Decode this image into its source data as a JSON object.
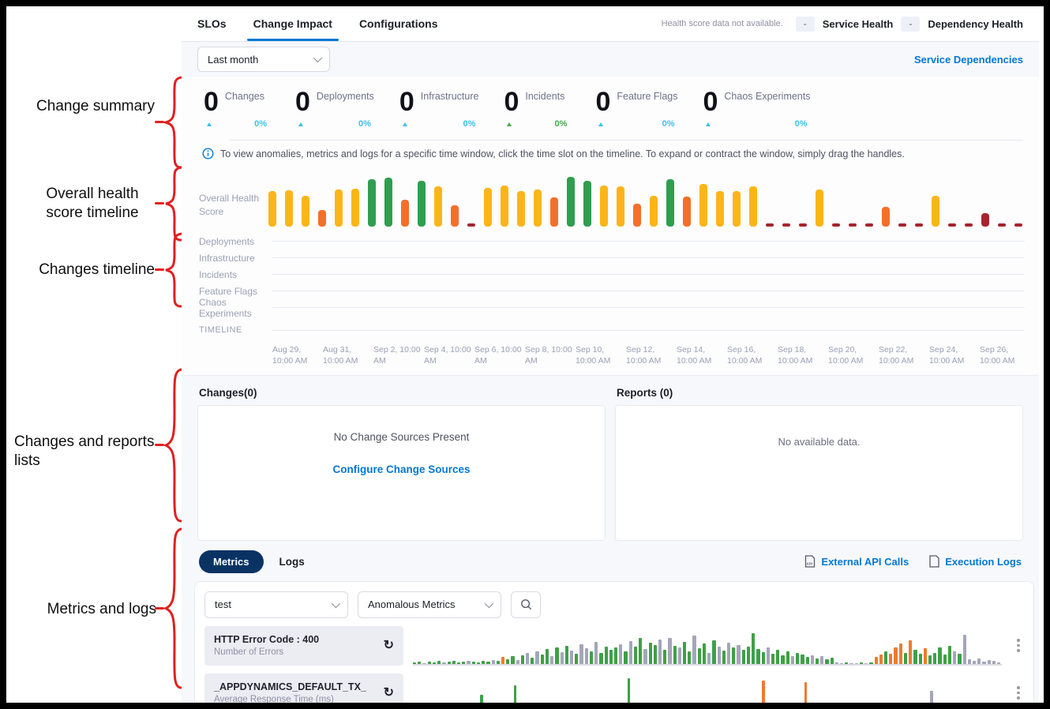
{
  "palette": {
    "y": "#fcb519",
    "g": "#2f9e4f",
    "o": "#f3702b",
    "r": "#a6242c",
    "a": "#a5a5b9"
  },
  "annotations": {
    "labels": [
      "Change summary",
      "Overall health score timeline",
      "Changes timeline",
      "Changes and reports lists",
      "Metrics and logs"
    ],
    "bracket_color": "#e02020"
  },
  "header": {
    "tabs": [
      {
        "label": "SLOs"
      },
      {
        "label": "Change Impact"
      },
      {
        "label": "Configurations"
      }
    ],
    "health_note": "Health score data not available.",
    "service_health": {
      "value": "-",
      "label": "Service Health"
    },
    "dependency_health": {
      "value": "-",
      "label": "Dependency Health"
    }
  },
  "toolbar": {
    "time_range": "Last month",
    "service_dependencies": "Service Dependencies"
  },
  "change_summary": {
    "items": [
      {
        "count": "0",
        "label": "Changes",
        "delta": "0%",
        "trend_color": "#3dc0e8"
      },
      {
        "count": "0",
        "label": "Deployments",
        "delta": "0%",
        "trend_color": "#3dc0e8"
      },
      {
        "count": "0",
        "label": "Infrastructure",
        "delta": "0%",
        "trend_color": "#3dc0e8"
      },
      {
        "count": "0",
        "label": "Incidents",
        "delta": "0%",
        "trend_color": "#42ab47"
      },
      {
        "count": "0",
        "label": "Feature Flags",
        "delta": "0%",
        "trend_color": "#3dc0e8"
      },
      {
        "count": "0",
        "label": "Chaos Experiments",
        "delta": "0%",
        "trend_color": "#3dc0e8"
      }
    ]
  },
  "info_banner": "To view anomalies, metrics and logs for a specific time window, click the time slot on the timeline. To expand or contract the window, simply drag the handles.",
  "health_timeline": {
    "row_label": "Overall Health Score",
    "chart": {
      "type": "bar",
      "heights": [
        68,
        70,
        60,
        32,
        72,
        73,
        92,
        94,
        52,
        88,
        78,
        42,
        7,
        74,
        80,
        68,
        72,
        56,
        96,
        88,
        80,
        78,
        44,
        60,
        92,
        58,
        82,
        68,
        68,
        78,
        7,
        7,
        7,
        72,
        7,
        7,
        7,
        38,
        7,
        7,
        60,
        7,
        7,
        26,
        7,
        7
      ],
      "colors": "yyyoyyggogyoryyyyoggyyoygoyyyyrrryrrrorryrrrrr"
    },
    "change_rows": [
      "Deployments",
      "Infrastructure",
      "Incidents",
      "Feature Flags",
      "Chaos Experiments"
    ],
    "timeline_label": "TIMELINE",
    "dates": [
      "Aug 29, 10:00 AM",
      "Aug 31, 10:00 AM",
      "Sep 2, 10:00 AM",
      "Sep 4, 10:00 AM",
      "Sep 6, 10:00 AM",
      "Sep 8, 10:00 AM",
      "Sep 10, 10:00 AM",
      "Sep 12, 10:00 AM",
      "Sep 14, 10:00 AM",
      "Sep 16, 10:00 AM",
      "Sep 18, 10:00 AM",
      "Sep 20, 10:00 AM",
      "Sep 22, 10:00 AM",
      "Sep 24, 10:00 AM",
      "Sep 26, 10:00 AM"
    ]
  },
  "changes_panel": {
    "title": "Changes(0)",
    "empty_text": "No Change Sources Present",
    "link": "Configure Change Sources"
  },
  "reports_panel": {
    "title": "Reports (0)",
    "empty_text": "No available data."
  },
  "metrics_section": {
    "tabs": [
      {
        "label": "Metrics"
      },
      {
        "label": "Logs"
      }
    ],
    "links": [
      {
        "label": "External API Calls"
      },
      {
        "label": "Execution Logs"
      }
    ],
    "filters": {
      "service": "test",
      "metric_type": "Anomalous Metrics"
    },
    "rows": [
      {
        "title": "HTTP Error Code : 400",
        "subtitle": "Number of Errors",
        "sparkline": {
          "type": "bar",
          "palette": {
            "g": "#3fa047",
            "a": "#a5a5b9",
            "o": "#ef7a2e"
          },
          "heights": [
            3,
            5,
            2,
            6,
            4,
            8,
            3,
            5,
            7,
            4,
            6,
            9,
            5,
            3,
            8,
            6,
            10,
            7,
            18,
            12,
            20,
            10,
            24,
            30,
            16,
            34,
            26,
            40,
            22,
            44,
            32,
            50,
            36,
            28,
            54,
            42,
            34,
            60,
            30,
            46,
            38,
            44,
            54,
            34,
            62,
            48,
            70,
            40,
            58,
            52,
            66,
            38,
            72,
            50,
            44,
            60,
            34,
            78,
            42,
            55,
            30,
            64,
            48,
            36,
            58,
            44,
            52,
            38,
            46,
            85,
            40,
            32,
            45,
            28,
            38,
            24,
            34,
            20,
            30,
            26,
            18,
            24,
            14,
            20,
            12,
            16,
            3,
            2,
            3,
            2,
            2,
            3,
            2,
            3,
            18,
            25,
            35,
            28,
            45,
            55,
            30,
            65,
            38,
            28,
            42,
            24,
            30,
            45,
            25,
            50,
            35,
            28,
            80,
            12,
            8,
            15,
            6,
            10,
            7,
            4
          ],
          "colors": "ggagggaggggaggggagoggagagaggagagagaagagggga gaggaggagagaggaggagagagaggg ggaggggagggagagg aagaagag oogooogoggog ggggag a aaaaaaa"
        }
      },
      {
        "title": "_APPDYNAMICS_DEFAULT_TX_",
        "subtitle": "Average Response Time (ms)",
        "sparkline": {
          "type": "bar",
          "palette": {
            "g": "#3fa047",
            "a": "#a5a5b9",
            "o": "#ef7a2e"
          },
          "heights": [
            6,
            10,
            4,
            12,
            8,
            14,
            5,
            9,
            11,
            7,
            6,
            10,
            4,
            12,
            8,
            14,
            45,
            9,
            11,
            7,
            6,
            10,
            4,
            12,
            70,
            14,
            5,
            9,
            11,
            7,
            6,
            10,
            4,
            12,
            8,
            14,
            5,
            9,
            11,
            7,
            6,
            10,
            4,
            12,
            8,
            14,
            5,
            9,
            11,
            7,
            6,
            90,
            4,
            12,
            8,
            14,
            5,
            9,
            11,
            7,
            6,
            10,
            4,
            12,
            8,
            14,
            5,
            9,
            11,
            7,
            6,
            10,
            4,
            12,
            8,
            14,
            5,
            9,
            11,
            7,
            6,
            10,
            4,
            85,
            8,
            14,
            5,
            9,
            11,
            7,
            6,
            10,
            4,
            80,
            8,
            14,
            5,
            9,
            11,
            7,
            6,
            10,
            4,
            12,
            8,
            14,
            5,
            9,
            11,
            7,
            6,
            10,
            4,
            12,
            8,
            14,
            5,
            9,
            11,
            7,
            6,
            10,
            4,
            55,
            8,
            14,
            5,
            9,
            11,
            7,
            6,
            10,
            4,
            12,
            8,
            14,
            5,
            9,
            11,
            7
          ],
          "colors": "ggaggaggagggaggaggagggaggaggagggaggaggagggaggaggagggaggaggagggaggaggagggaggaggagggaogaggagggaogaggagggaggaggagggaggaggagggaaaaaaaaaaaaaaaaaa"
        }
      }
    ]
  }
}
